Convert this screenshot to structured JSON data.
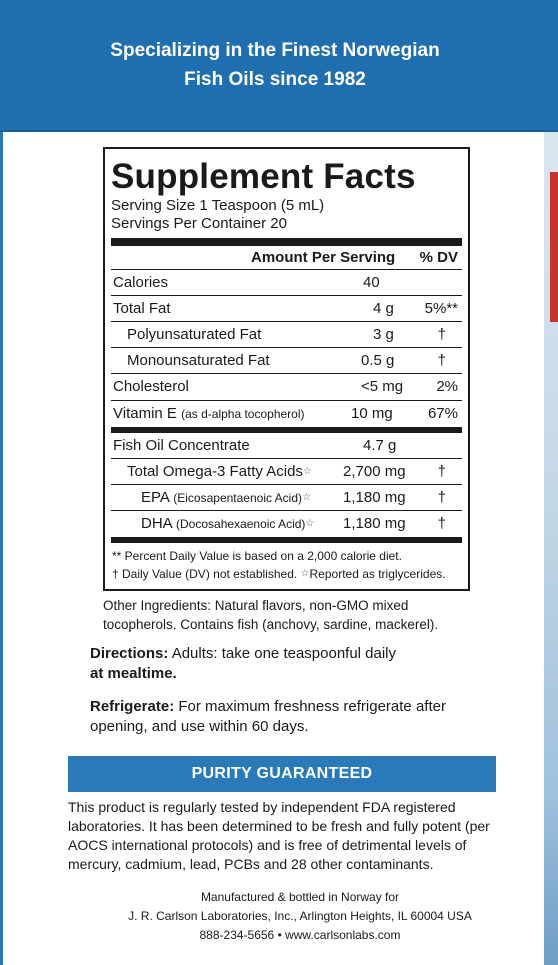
{
  "banner": {
    "line1": "Specializing in the Finest Norwegian",
    "line2": "Fish Oils since 1982"
  },
  "facts": {
    "title": "Supplement Facts",
    "serving_size": "Serving Size 1 Teaspoon (5 mL)",
    "servings_per_container": "Servings Per Container 20",
    "header_amount": "Amount Per Serving",
    "header_dv": "% DV",
    "rows": [
      {
        "name": "Calories",
        "amount": "40",
        "dv": ""
      },
      {
        "name": "Total Fat",
        "amount": "4 g",
        "dv": "5%**"
      },
      {
        "name": "Polyunsaturated Fat",
        "amount": "3 g",
        "dv": "†"
      },
      {
        "name": "Monounsaturated Fat",
        "amount": "0.5 g",
        "dv": "†"
      },
      {
        "name": "Cholesterol",
        "amount": "<5 mg",
        "dv": "2%"
      },
      {
        "name": "Vitamin E",
        "name_note": "(as d-alpha tocopherol)",
        "amount": "10 mg",
        "dv": "67%"
      },
      {
        "name": "Fish Oil Concentrate",
        "amount": "4.7 g",
        "dv": ""
      },
      {
        "name": "Total Omega-3 Fatty Acids",
        "mark": "☆",
        "amount": "2,700 mg",
        "dv": "†"
      },
      {
        "name": "EPA",
        "name_note": "(Eicosapentaenoic Acid)",
        "mark": "☆",
        "amount": "1,180 mg",
        "dv": "†"
      },
      {
        "name": "DHA",
        "name_note": "(Docosahexaenoic Acid)",
        "mark": "☆",
        "amount": "1,180 mg",
        "dv": "†"
      }
    ],
    "footnote1": "** Percent Daily Value is based on a 2,000 calorie diet.",
    "footnote2a": "† Daily Value (DV) not established.",
    "footnote2_mark": "☆",
    "footnote2b": "Reported as triglycerides."
  },
  "ingredients": {
    "line1": "Other Ingredients: Natural flavors, non-GMO mixed",
    "line2": "tocopherols.  Contains fish (anchovy, sardine, mackerel)."
  },
  "directions": {
    "label": "Directions:",
    "text": " Adults: take one teaspoonful daily",
    "text_bold": "at mealtime."
  },
  "refrigerate": {
    "label": "Refrigerate:",
    "text": " For maximum freshness refrigerate after opening, and use within 60 days."
  },
  "purity": {
    "title": "PURITY GUARANTEED",
    "text": "This product is regularly tested by independent FDA registered laboratories. It has been determined to be fresh and fully potent (per AOCS international protocols) and is free of detrimental levels of mercury, cadmium, lead, PCBs and 28 other contaminants."
  },
  "manufacturer": {
    "line1": "Manufactured & bottled in Norway for",
    "line2": "J. R. Carlson Laboratories, Inc., Arlington Heights, IL  60004 USA",
    "line3": "888-234-5656  •  www.carlsonlabs.com"
  },
  "colors": {
    "banner": "#1f6fb0",
    "purity_bar": "#2a7ab9",
    "accent_red": "#c8322e"
  }
}
